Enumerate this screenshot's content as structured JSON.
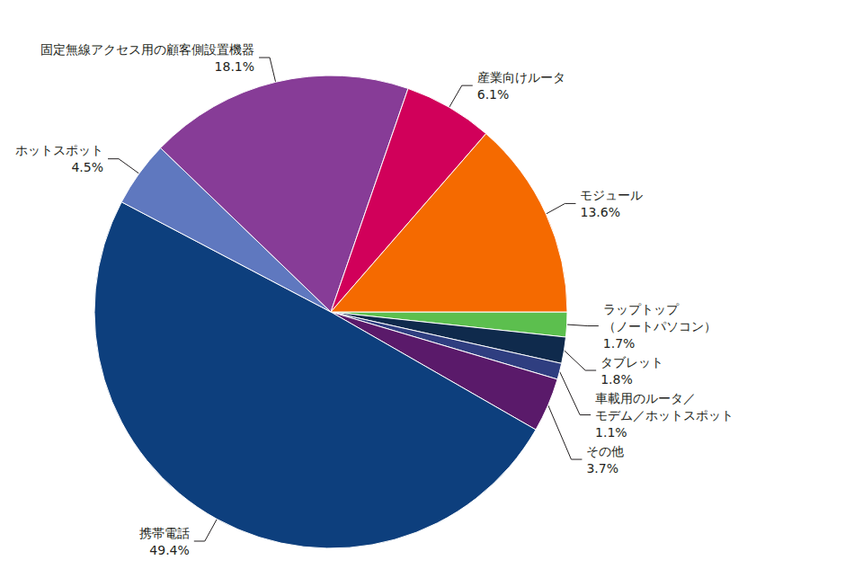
{
  "chart_data": {
    "type": "pie",
    "categories": [
      "ラップトップ\n（ノートパソコン）",
      "タブレット",
      "車載用のルータ／\nモデム／ホットスポット",
      "その他",
      "携帯電話",
      "ホットスポット",
      "固定無線アクセス用の顧客側設置機器",
      "産業向けルータ",
      "モジュール"
    ],
    "values": [
      1.7,
      1.8,
      1.1,
      3.7,
      49.4,
      4.5,
      18.1,
      6.1,
      13.6
    ],
    "value_labels": [
      "1.7%",
      "1.8%",
      "1.1%",
      "3.7%",
      "49.4%",
      "4.5%",
      "18.1%",
      "6.1%",
      "13.6%"
    ],
    "colors": [
      "#5cbf4e",
      "#0f2a4c",
      "#2f3e80",
      "#5a1a6a",
      "#0d3f7d",
      "#5f78bf",
      "#873c97",
      "#d1005a",
      "#f56a00"
    ],
    "data_labels": true
  }
}
